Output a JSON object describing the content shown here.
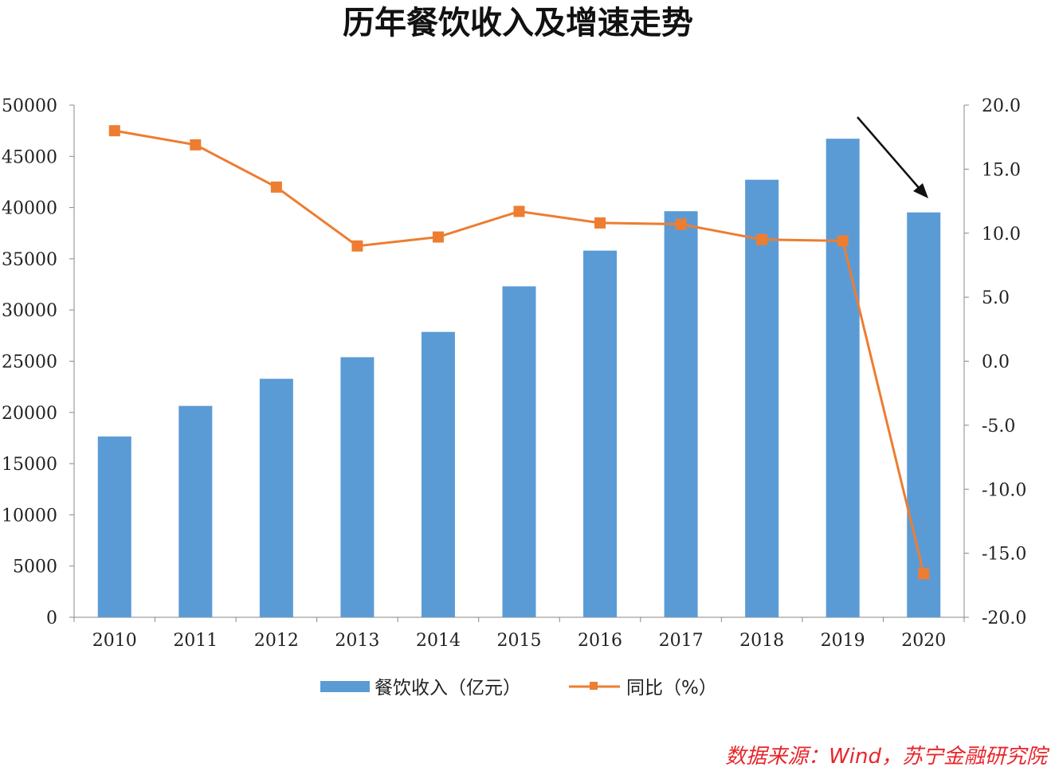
{
  "chart_data": {
    "type": "bar+line",
    "title": "历年餐饮收入及增速走势",
    "categories": [
      "2010",
      "2011",
      "2012",
      "2013",
      "2014",
      "2015",
      "2016",
      "2017",
      "2018",
      "2019",
      "2020"
    ],
    "series": [
      {
        "name": "餐饮收入（亿元）",
        "type": "bar",
        "axis": "left",
        "color": "#5b9bd5",
        "values": [
          17648,
          20635,
          23283,
          25392,
          27860,
          32310,
          35799,
          39644,
          42716,
          46721,
          39527
        ]
      },
      {
        "name": "同比（%）",
        "type": "line",
        "axis": "right",
        "color": "#ed7d31",
        "marker": "square",
        "values": [
          18.0,
          16.9,
          13.6,
          9.0,
          9.7,
          11.7,
          10.8,
          10.7,
          9.5,
          9.4,
          -16.6
        ]
      }
    ],
    "ylim_left": [
      0,
      50000
    ],
    "yticks_left": [
      "0",
      "5000",
      "10000",
      "15000",
      "20000",
      "25000",
      "30000",
      "35000",
      "40000",
      "45000",
      "50000"
    ],
    "ylim_right": [
      -20,
      20
    ],
    "yticks_right": [
      "-20.0",
      "-15.0",
      "-10.0",
      "-5.0",
      "0.0",
      "5.0",
      "10.0",
      "15.0",
      "20.0"
    ],
    "grid": false,
    "legend": "bottom",
    "annotation": "arrow pointing to 2020 decline",
    "source": "数据来源：Wind，苏宁金融研究院"
  }
}
